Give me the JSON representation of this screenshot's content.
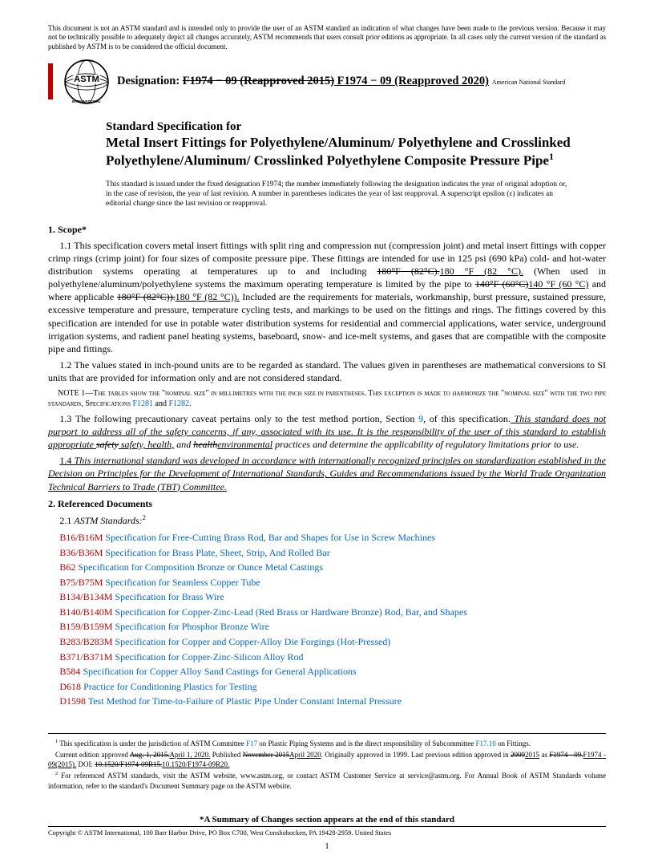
{
  "disclaimer": "This document is not an ASTM standard and is intended only to provide the user of an ASTM standard an indication of what changes have been made to the previous version. Because it may not be technically possible to adequately depict all changes accurately, ASTM recommends that users consult prior editions as appropriate. In all cases only the current version of the standard as published by ASTM is to be considered the official document.",
  "logo_text_top": "ASTM",
  "logo_text_bottom": "INTERNATIONAL",
  "designation_label": "Designation: ",
  "designation_old": "F1974 − 09 (Reapproved 2015)",
  "designation_new": " F1974 − 09 (Reapproved 2020)",
  "ans_note": "American National Standard",
  "title_lead": "Standard Specification for",
  "title_main": "Metal Insert Fittings for Polyethylene/Aluminum/ Polyethylene and Crosslinked Polyethylene/Aluminum/ Crosslinked Polyethylene Composite Pressure Pipe",
  "title_sup": "1",
  "issued_note": "This standard is issued under the fixed designation F1974; the number immediately following the designation indicates the year of original adoption or, in the case of revision, the year of last revision. A number in parentheses indicates the year of last reapproval. A superscript epsilon (ε) indicates an editorial change since the last revision or reapproval.",
  "scope": {
    "heading": "1.  Scope*",
    "p1_a": "1.1  This specification covers metal insert fittings with split ring and compression nut (compression joint) and metal insert fittings with copper crimp rings (crimp joint) for four sizes of composite pressure pipe. These fittings are intended for use in 125 psi (690 kPa) cold- and hot-water distribution systems operating at temperatures up to and including ",
    "p1_s1": "180°F (82°C).",
    "p1_u1": "180 °F (82 °C).",
    "p1_b": " (When used in polyethylene/aluminum/polyethylene systems the maximum operating temperature is limited by the pipe to ",
    "p1_s2": "140°F (60°C)",
    "p1_u2": "140 °F (60 °C)",
    "p1_c": " and where applicable ",
    "p1_s3": "180°F (82°C)).",
    "p1_u3": "180 °F (82 °C)).",
    "p1_d": " Included are the requirements for materials, workmanship, burst pressure, sustained pressure, excessive temperature and pressure, temperature cycling tests, and markings to be used on the fittings and rings. The fittings covered by this specification are intended for use in potable water distribution systems for residential and commercial applications, water service, underground irrigation systems, and radient panel heating systems, baseboard, snow- and ice-melt systems, and gases that are compatible with the composite pipe and fittings.",
    "p2": "1.2  The values stated in inch-pound units are to be regarded as standard. The values given in parentheses are mathematical conversions to SI units that are provided for information only and are not considered standard.",
    "note1_a": "NOTE 1—The tables show the \"nominal size\" in millimetres with the inch size in parentheses. This exception is made to harmonize the \"nominal size\" with the two pipe standards, Specifications ",
    "note1_l1": "F1281",
    "note1_b": " and ",
    "note1_l2": "F1282",
    "note1_c": ".",
    "p3_a": "1.3  The following precautionary caveat pertains only to the test method portion, Section ",
    "p3_link": "9",
    "p3_b": ", of this specification.",
    "p3_it1": " This standard does not purport to address all of the safety concerns, if any, associated with its use. It is the responsibility of the user of this standard to establish appropriate ",
    "p3_s": "safety",
    "p3_u": " safety, health,",
    "p3_it2": " and ",
    "p3_s2": "health",
    "p3_u2": "environmental",
    "p3_it3": " practices and determine the applicability of regulatory limitations prior to use.",
    "p4_lbl": "1.4",
    "p4": " This international standard was developed in accordance with internationally recognized principles on standardization established in the Decision on Principles for the Development of International Standards, Guides and Recommendations issued by the World Trade Organization Technical Barriers to Trade (TBT) Committee."
  },
  "refs": {
    "heading": "2.  Referenced Documents",
    "sub": "2.1 ",
    "sub_it": "ASTM Standards:",
    "sub_sup": "2",
    "items": [
      {
        "code": "B16/B16M",
        "title": "Specification for Free-Cutting Brass Rod, Bar and Shapes for Use in Screw Machines"
      },
      {
        "code": "B36/B36M",
        "title": "Specification for Brass Plate, Sheet, Strip, And Rolled Bar"
      },
      {
        "code": "B62",
        "title": "Specification for Composition Bronze or Ounce Metal Castings"
      },
      {
        "code": "B75/B75M",
        "title": "Specification for Seamless Copper Tube"
      },
      {
        "code": "B134/B134M",
        "title": "Specification for Brass Wire"
      },
      {
        "code": "B140/B140M",
        "title": "Specification for Copper-Zinc-Lead (Red Brass or Hardware Bronze) Rod, Bar, and Shapes"
      },
      {
        "code": "B159/B159M",
        "title": "Specification for Phosphor Bronze Wire"
      },
      {
        "code": "B283/B283M",
        "title": "Specification for Copper and Copper-Alloy Die Forgings (Hot-Pressed)"
      },
      {
        "code": "B371/B371M",
        "title": "Specification for Copper-Zinc-Silicon Alloy Rod"
      },
      {
        "code": "B584",
        "title": "Specification for Copper Alloy Sand Castings for General Applications"
      },
      {
        "code": "D618",
        "title": "Practice for Conditioning Plastics for Testing"
      },
      {
        "code": "D1598",
        "title": "Test Method for Time-to-Failure of Plastic Pipe Under Constant Internal Pressure"
      }
    ]
  },
  "fn1_sup": "1",
  "fn1_a": " This specification is under the jurisdiction of ASTM Committee ",
  "fn1_l1": "F17",
  "fn1_b": " on Plastic Piping Systems and is the direct responsibility of Subcommittee ",
  "fn1_l2": "F17.10",
  "fn1_c": " on Fittings.",
  "fn1_d": "Current edition approved ",
  "fn1_s1": "Aug. 1, 2015.",
  "fn1_u1": "April 1, 2020.",
  "fn1_e": " Published ",
  "fn1_s2": "November 2015",
  "fn1_u2": "April 2020",
  "fn1_f": ". Originally approved in 1999. Last previous edition approved in ",
  "fn1_s3": "2009",
  "fn1_u3": "2015",
  "fn1_g": " as ",
  "fn1_s4": "F1974 - 09.",
  "fn1_u4": "F1974 - 09(2015).",
  "fn1_h": " DOI: ",
  "fn1_s5": "10.1520/F1974-09R15.",
  "fn1_u5": "10.1520/F1974-09R20.",
  "fn2_sup": "2",
  "fn2": " For referenced ASTM standards, visit the ASTM website, www.astm.org, or contact ASTM Customer Service at service@astm.org. For Annual Book of ASTM Standards volume information, refer to the standard's Document Summary page on the ASTM website.",
  "summary": "*A Summary of Changes section appears at the end of this standard",
  "copyright": "Copyright © ASTM International, 100 Barr Harbor Drive, PO Box C700, West Conshohocken, PA 19428-2959. United States",
  "pagenum": "1"
}
